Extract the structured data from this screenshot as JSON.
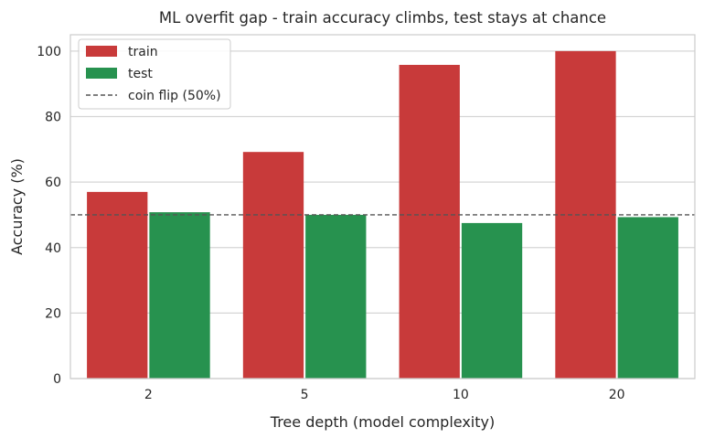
{
  "chart_data": {
    "type": "bar",
    "title": "ML overfit gap - train accuracy climbs, test stays at chance",
    "xlabel": "Tree depth (model complexity)",
    "ylabel": "Accuracy (%)",
    "categories": [
      "2",
      "5",
      "10",
      "20"
    ],
    "series": [
      {
        "name": "train",
        "color": "#c83a3a",
        "values": [
          57,
          69.2,
          95.8,
          100
        ]
      },
      {
        "name": "test",
        "color": "#27924f",
        "values": [
          50.8,
          50,
          47.5,
          49.3
        ]
      }
    ],
    "ylim": [
      0,
      105
    ],
    "yticks": [
      0,
      20,
      40,
      60,
      80,
      100
    ],
    "reference_line": {
      "label": "coin flip (50%)",
      "value": 50,
      "style": "dashed",
      "color": "#555555"
    },
    "grid": "y",
    "legend_position": "top-left"
  }
}
